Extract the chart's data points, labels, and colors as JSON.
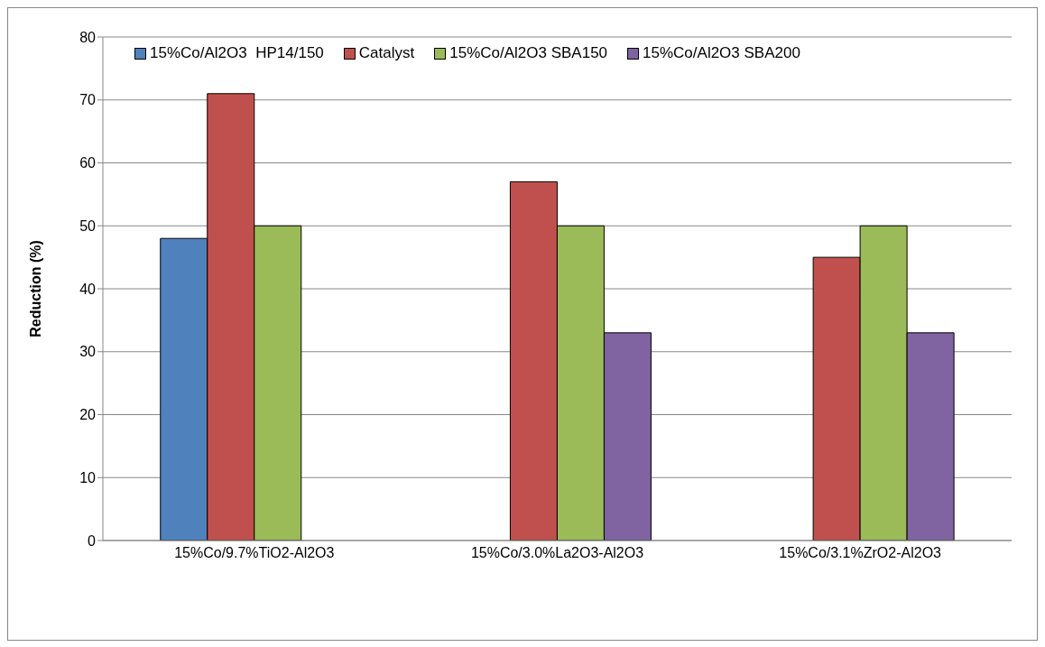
{
  "chart_data": {
    "type": "bar",
    "ylabel": "Reduction (%)",
    "categories": [
      "15%Co/9.7%TiO2-Al2O3",
      "15%Co/3.0%La2O3-Al2O3",
      "15%Co/3.1%ZrO2-Al2O3"
    ],
    "series": [
      {
        "name": "15%Co/Al2O3  HP14/150",
        "color": "#4f81bd",
        "values": [
          48,
          null,
          null
        ]
      },
      {
        "name": "Catalyst",
        "color": "#c0504d",
        "values": [
          71,
          57,
          45
        ]
      },
      {
        "name": "15%Co/Al2O3 SBA150",
        "color": "#9bbb59",
        "values": [
          50,
          50,
          50
        ]
      },
      {
        "name": "15%Co/Al2O3 SBA200",
        "color": "#8064a2",
        "values": [
          null,
          33,
          33
        ]
      }
    ],
    "ylim": [
      0,
      80
    ],
    "yticks": [
      0,
      10,
      20,
      30,
      40,
      50,
      60,
      70,
      80
    ],
    "grid": "y",
    "legend": "top"
  }
}
